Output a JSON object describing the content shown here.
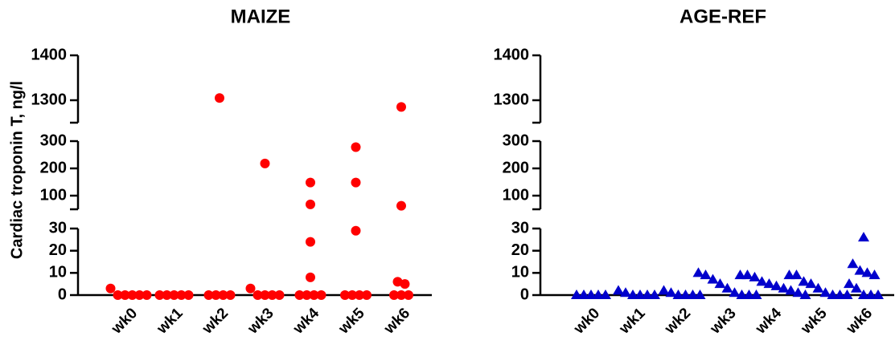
{
  "chart_data": [
    {
      "type": "scatter",
      "title": "MAIZE",
      "ylabel": "Cardiac troponin T, ng/l",
      "marker": "circle",
      "color": "#ff0000",
      "categories": [
        "wk0",
        "wk1",
        "wk2",
        "wk3",
        "wk4",
        "wk5",
        "wk6"
      ],
      "values": [
        [
          3,
          0,
          0,
          0,
          0,
          0
        ],
        [
          0,
          0,
          0,
          0,
          0
        ],
        [
          1305,
          0,
          0,
          0,
          0
        ],
        [
          218,
          3,
          0,
          0,
          0,
          0
        ],
        [
          148,
          68,
          24,
          8,
          0,
          0,
          0,
          0
        ],
        [
          278,
          148,
          29,
          0,
          0,
          0,
          0
        ],
        [
          1285,
          63,
          6,
          5,
          0,
          0,
          0
        ]
      ],
      "y_segments": [
        {
          "ylim": [
            0,
            30
          ],
          "yticks": [
            0,
            10,
            20,
            30
          ]
        },
        {
          "ylim": [
            50,
            300
          ],
          "yticks": [
            100,
            200,
            300
          ]
        },
        {
          "ylim": [
            1250,
            1400
          ],
          "yticks": [
            1300,
            1400
          ]
        }
      ]
    },
    {
      "type": "scatter",
      "title": "AGE-REF",
      "marker": "triangle",
      "color": "#0000cc",
      "categories": [
        "wk0",
        "wk1",
        "wk2",
        "wk3",
        "wk4",
        "wk5",
        "wk6"
      ],
      "values": [
        [
          0,
          0,
          0,
          0,
          0
        ],
        [
          2,
          1,
          0,
          0,
          0,
          0
        ],
        [
          2,
          1,
          0,
          0,
          0,
          0
        ],
        [
          10,
          9,
          7,
          5,
          3,
          1,
          0,
          0,
          0
        ],
        [
          9,
          9,
          8,
          6,
          5,
          4,
          3,
          2,
          1,
          0
        ],
        [
          9,
          9,
          6,
          5,
          3,
          1,
          0,
          0,
          0
        ],
        [
          26,
          14,
          11,
          10,
          9,
          5,
          3,
          0,
          0,
          0
        ]
      ],
      "y_segments": [
        {
          "ylim": [
            0,
            30
          ],
          "yticks": [
            0,
            10,
            20,
            30
          ]
        },
        {
          "ylim": [
            50,
            300
          ],
          "yticks": [
            100,
            200,
            300
          ]
        },
        {
          "ylim": [
            1250,
            1400
          ],
          "yticks": [
            1300,
            1400
          ]
        }
      ]
    }
  ]
}
